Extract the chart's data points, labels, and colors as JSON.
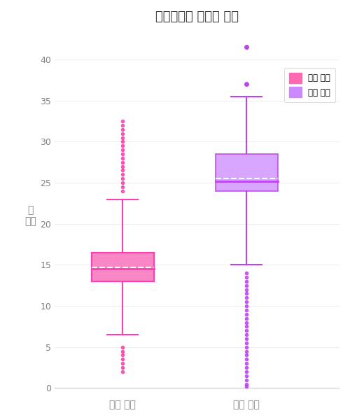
{
  "title": "문장길이와 말하는 속도",
  "ylabel_line1": "말",
  "ylabel_line2": "속도",
  "categories": [
    "일반 대화",
    "영어 대화"
  ],
  "legend_labels": [
    "일반 대화",
    "영어 대화"
  ],
  "box1": {
    "q1": 13.0,
    "median": 14.5,
    "q3": 16.5,
    "mean": 14.7,
    "whisker_low": 6.5,
    "whisker_high": 23.0,
    "outliers": [
      32.5,
      32.0,
      31.5,
      31.0,
      30.5,
      30.0,
      29.5,
      29.0,
      28.5,
      28.0,
      27.5,
      27.0,
      26.5,
      26.0,
      25.5,
      25.0,
      24.5,
      24.0,
      5.0,
      4.5,
      4.0,
      3.5,
      3.0,
      2.5,
      2.0
    ],
    "color": "#FF3DB0",
    "color_fill": "#F987C5",
    "median_color": "#FF3DB0",
    "edge_color": "#FF3DB0"
  },
  "box2": {
    "q1": 24.0,
    "median": 25.2,
    "q3": 28.5,
    "mean": 25.5,
    "whisker_low": 15.0,
    "whisker_high": 35.5,
    "outliers_above": [
      37.0,
      41.5
    ],
    "outliers_below": [
      14.0,
      13.5,
      13.0,
      12.5,
      12.0,
      11.5,
      11.0,
      10.5,
      10.0,
      9.5,
      9.0,
      8.5,
      8.0,
      7.5,
      7.0,
      6.5,
      6.0,
      5.5,
      5.0,
      4.5,
      4.0,
      3.5,
      3.0,
      2.5,
      2.0,
      1.5,
      1.0,
      0.5,
      0.2
    ],
    "color": "#BB44EE",
    "color_fill": "#CC88FF",
    "median_color": "#BB44EE",
    "edge_color": "#BB44EE"
  },
  "ylim": [
    -1,
    43
  ],
  "yticks": [
    0,
    5,
    10,
    15,
    20,
    25,
    30,
    35,
    40
  ],
  "background_color": "#ffffff",
  "grid_color": "#eeeeee",
  "legend_color1": "#FF69B4",
  "legend_color2": "#CC88FF"
}
